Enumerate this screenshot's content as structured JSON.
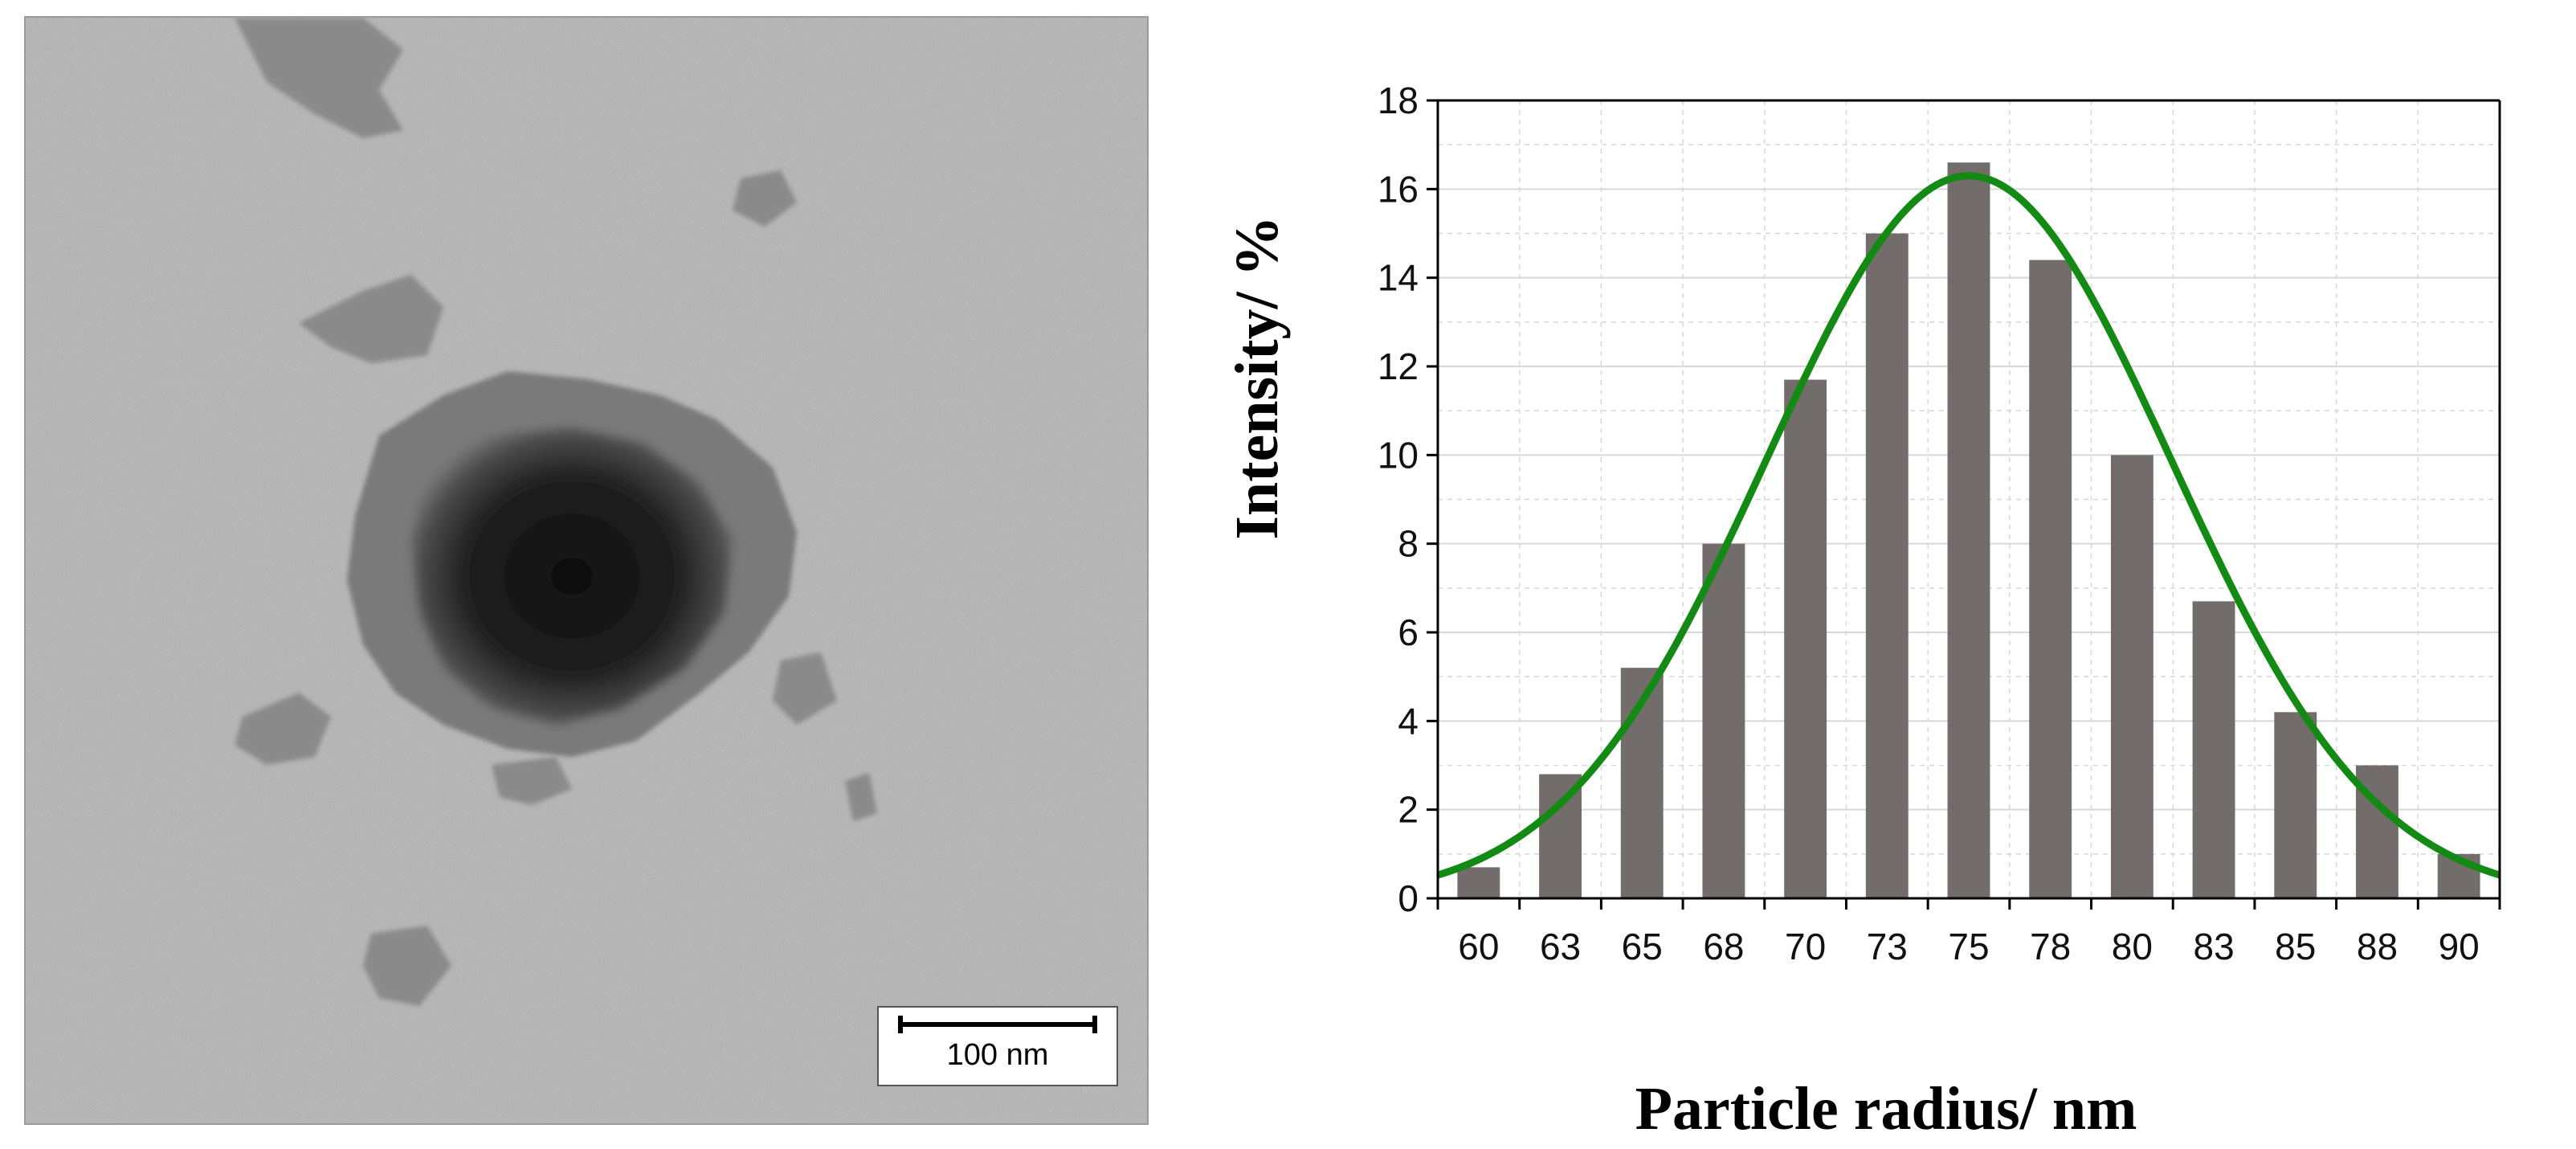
{
  "micrograph": {
    "scale_bar_label": "100 nm",
    "background_color": "#b4b4b4",
    "particle_color": "#1c1c1c"
  },
  "chart_data": {
    "type": "bar",
    "categories": [
      "60",
      "63",
      "65",
      "68",
      "70",
      "73",
      "75",
      "78",
      "80",
      "83",
      "85",
      "88",
      "90"
    ],
    "values": [
      0.7,
      2.8,
      5.2,
      8.0,
      11.7,
      15.0,
      16.6,
      14.4,
      10.0,
      6.7,
      4.2,
      3.0,
      1.0
    ],
    "fit_curve": {
      "type": "gaussian",
      "peak_value": 16.3,
      "peak_position": 75,
      "sigma": 6.2
    },
    "title": "",
    "xlabel": "Particle radius/ nm",
    "ylabel": "Intensity/ %",
    "ylim": [
      0,
      18
    ],
    "yticks": [
      0,
      2,
      4,
      6,
      8,
      10,
      12,
      14,
      16,
      18
    ],
    "grid": true,
    "colors": {
      "bars": "#726c6a",
      "fit_curve": "#138a13",
      "grid": "#d8d8d8"
    }
  }
}
